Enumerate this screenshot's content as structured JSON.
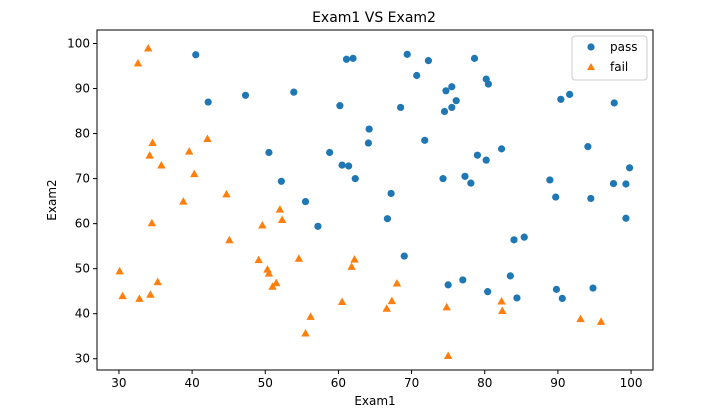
{
  "chart_data": {
    "type": "scatter",
    "title": "Exam1 VS Exam2",
    "xlabel": "Exam1",
    "ylabel": "Exam2",
    "xlim": [
      27,
      103
    ],
    "ylim": [
      27.5,
      103
    ],
    "xticks": [
      30,
      40,
      50,
      60,
      70,
      80,
      90,
      100
    ],
    "yticks": [
      30,
      40,
      50,
      60,
      70,
      80,
      90,
      100
    ],
    "legend_position": "top-right",
    "series": [
      {
        "name": "pass",
        "marker": "circle",
        "color": "#1f77b4",
        "points": [
          [
            40.5,
            97.5
          ],
          [
            42.2,
            87.0
          ],
          [
            47.3,
            88.5
          ],
          [
            50.5,
            75.8
          ],
          [
            52.2,
            69.4
          ],
          [
            53.9,
            89.2
          ],
          [
            55.5,
            64.9
          ],
          [
            57.2,
            59.4
          ],
          [
            58.8,
            75.8
          ],
          [
            60.2,
            86.2
          ],
          [
            60.5,
            73.0
          ],
          [
            61.1,
            96.5
          ],
          [
            61.4,
            72.8
          ],
          [
            62.0,
            96.7
          ],
          [
            62.3,
            70.0
          ],
          [
            64.1,
            77.9
          ],
          [
            64.2,
            81.0
          ],
          [
            66.7,
            61.1
          ],
          [
            67.2,
            66.7
          ],
          [
            68.5,
            85.8
          ],
          [
            69.0,
            52.8
          ],
          [
            69.4,
            97.6
          ],
          [
            70.7,
            92.9
          ],
          [
            71.8,
            78.5
          ],
          [
            72.3,
            96.2
          ],
          [
            74.3,
            70.0
          ],
          [
            74.5,
            84.9
          ],
          [
            74.7,
            89.5
          ],
          [
            75.0,
            46.4
          ],
          [
            75.5,
            85.8
          ],
          [
            75.5,
            90.4
          ],
          [
            76.1,
            87.3
          ],
          [
            77.0,
            47.5
          ],
          [
            77.3,
            70.5
          ],
          [
            78.1,
            69.0
          ],
          [
            78.6,
            96.7
          ],
          [
            79.0,
            75.2
          ],
          [
            80.2,
            74.1
          ],
          [
            80.2,
            92.1
          ],
          [
            80.4,
            44.9
          ],
          [
            80.5,
            91.0
          ],
          [
            82.3,
            76.6
          ],
          [
            83.5,
            48.4
          ],
          [
            84.0,
            56.4
          ],
          [
            84.4,
            43.5
          ],
          [
            85.4,
            57.0
          ],
          [
            88.9,
            69.7
          ],
          [
            89.7,
            65.9
          ],
          [
            89.8,
            45.4
          ],
          [
            90.4,
            87.6
          ],
          [
            90.6,
            43.4
          ],
          [
            91.6,
            88.7
          ],
          [
            94.1,
            77.1
          ],
          [
            94.5,
            65.6
          ],
          [
            94.8,
            45.7
          ],
          [
            97.6,
            68.9
          ],
          [
            97.7,
            86.8
          ],
          [
            99.3,
            68.8
          ],
          [
            99.3,
            61.2
          ],
          [
            99.8,
            72.4
          ]
        ]
      },
      {
        "name": "fail",
        "marker": "triangle",
        "color": "#ff7f0e",
        "points": [
          [
            30.1,
            49.4
          ],
          [
            30.5,
            43.9
          ],
          [
            32.6,
            95.6
          ],
          [
            32.8,
            43.3
          ],
          [
            34.0,
            98.9
          ],
          [
            34.2,
            75.1
          ],
          [
            34.3,
            44.2
          ],
          [
            34.5,
            60.1
          ],
          [
            34.6,
            77.9
          ],
          [
            35.3,
            47.0
          ],
          [
            35.8,
            72.9
          ],
          [
            38.8,
            64.9
          ],
          [
            39.6,
            76.0
          ],
          [
            40.3,
            71.0
          ],
          [
            42.1,
            78.8
          ],
          [
            44.7,
            66.5
          ],
          [
            45.1,
            56.3
          ],
          [
            49.1,
            51.9
          ],
          [
            49.6,
            59.6
          ],
          [
            50.3,
            49.8
          ],
          [
            50.5,
            48.9
          ],
          [
            51.0,
            46.0
          ],
          [
            51.5,
            46.8
          ],
          [
            52.0,
            63.1
          ],
          [
            52.3,
            60.8
          ],
          [
            54.6,
            52.2
          ],
          [
            55.5,
            35.6
          ],
          [
            56.2,
            39.3
          ],
          [
            60.5,
            42.6
          ],
          [
            61.8,
            50.4
          ],
          [
            62.2,
            52.0
          ],
          [
            66.6,
            41.1
          ],
          [
            67.3,
            42.8
          ],
          [
            68.0,
            46.7
          ],
          [
            74.8,
            41.4
          ],
          [
            75.0,
            30.6
          ],
          [
            82.3,
            42.7
          ],
          [
            82.4,
            40.6
          ],
          [
            93.1,
            38.8
          ],
          [
            95.9,
            38.2
          ]
        ]
      }
    ]
  }
}
